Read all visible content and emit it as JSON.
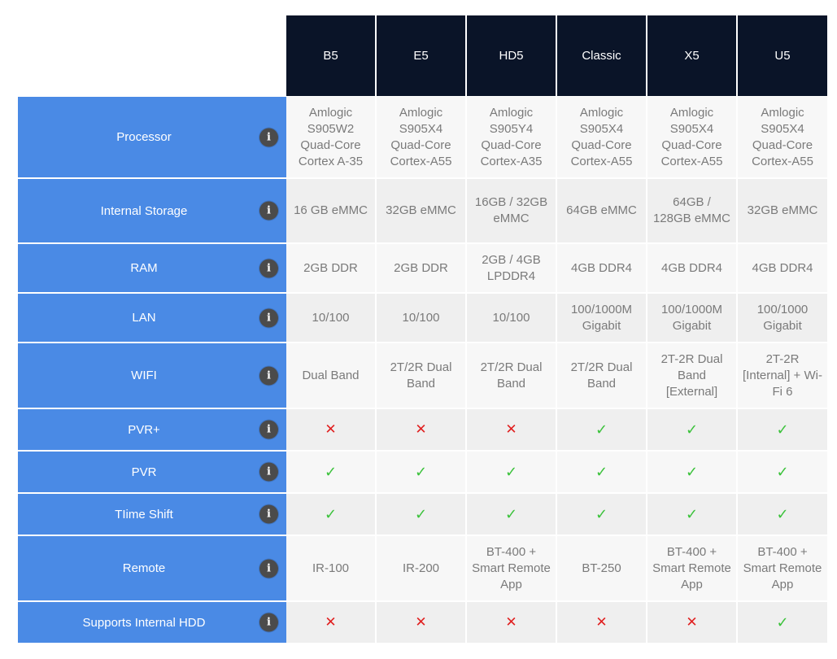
{
  "colors": {
    "header_bg": "#0a1428",
    "label_bg": "#4a8ae5",
    "check": "#3bc23b",
    "cross": "#e02020",
    "info_icon_bg": "#4b4b4b"
  },
  "icons": {
    "info": "i",
    "yes": "✓",
    "no": "✕"
  },
  "models": [
    "B5",
    "E5",
    "HD5",
    "Classic",
    "X5",
    "U5"
  ],
  "rows": [
    {
      "label": "Processor",
      "height": 101,
      "type": "text",
      "values": [
        "Amlogic S905W2 Quad-Core Cortex A-35",
        "Amlogic S905X4 Quad-Core Cortex-A55",
        "Amlogic S905Y4 Quad-Core Cortex-A35",
        "Amlogic S905X4 Quad-Core Cortex-A55",
        "Amlogic S905X4 Quad-Core Cortex-A55",
        "Amlogic S905X4 Quad-Core Cortex-A55"
      ]
    },
    {
      "label": "Internal Storage",
      "height": 80,
      "type": "text",
      "values": [
        "16 GB eMMC",
        "32GB eMMC",
        "16GB / 32GB eMMC",
        "64GB eMMC",
        "64GB / 128GB eMMC",
        "32GB eMMC"
      ]
    },
    {
      "label": "RAM",
      "height": 61,
      "type": "text",
      "values": [
        "2GB DDR",
        "2GB DDR",
        "2GB / 4GB LPDDR4",
        "4GB DDR4",
        "4GB DDR4",
        "4GB DDR4"
      ]
    },
    {
      "label": "LAN",
      "height": 61,
      "type": "text",
      "values": [
        "10/100",
        "10/100",
        "10/100",
        "100/1000M Gigabit",
        "100/1000M Gigabit",
        "100/1000 Gigabit"
      ]
    },
    {
      "label": "WIFI",
      "height": 81,
      "type": "text",
      "values": [
        "Dual Band",
        "2T/2R Dual Band",
        "2T/2R Dual Band",
        "2T/2R Dual Band",
        "2T-2R Dual Band [External]",
        "2T-2R [Internal] + Wi-Fi 6"
      ]
    },
    {
      "label": "PVR+",
      "height": 52,
      "type": "mark",
      "values": [
        "no",
        "no",
        "no",
        "yes",
        "yes",
        "yes"
      ]
    },
    {
      "label": "PVR",
      "height": 52,
      "type": "mark",
      "values": [
        "yes",
        "yes",
        "yes",
        "yes",
        "yes",
        "yes"
      ]
    },
    {
      "label": "TIime Shift",
      "height": 52,
      "type": "mark",
      "values": [
        "yes",
        "yes",
        "yes",
        "yes",
        "yes",
        "yes"
      ]
    },
    {
      "label": "Remote",
      "height": 81,
      "type": "text",
      "values": [
        "IR-100",
        "IR-200",
        "BT-400 + Smart Remote App",
        "BT-250",
        "BT-400 + Smart Remote App",
        "BT-400 + Smart Remote App"
      ]
    },
    {
      "label": "Supports Internal HDD",
      "height": 52,
      "type": "mark",
      "values": [
        "no",
        "no",
        "no",
        "no",
        "no",
        "yes"
      ]
    }
  ]
}
